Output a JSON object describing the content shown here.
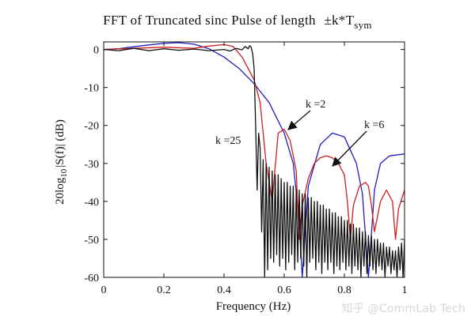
{
  "chart_data": {
    "type": "line",
    "title": "FFT of Truncated sinc Pulse of length",
    "title_suffix": "±k*T",
    "title_subscript": "sym",
    "xlabel": "Frequency (Hz)",
    "ylabel_prefix": "20log",
    "ylabel_subscript": "10",
    "ylabel_suffix": "|S(f)| (dB)",
    "xlim": [
      0,
      1
    ],
    "ylim": [
      -60,
      2
    ],
    "xticks": [
      0,
      0.2,
      0.4,
      0.6,
      0.8,
      1
    ],
    "xtick_labels": [
      "0",
      "0.2",
      "0.4",
      "0.6",
      "0.8",
      "1"
    ],
    "yticks": [
      0,
      -10,
      -20,
      -30,
      -40,
      -50,
      -60
    ],
    "ytick_labels": [
      "0",
      "-10",
      "-20",
      "-30",
      "-40",
      "-50",
      "-60"
    ],
    "grid": false,
    "series": [
      {
        "name": "k =2",
        "color": "#1f1fbf",
        "x": [
          0,
          0.05,
          0.1,
          0.15,
          0.2,
          0.25,
          0.3,
          0.35,
          0.4,
          0.45,
          0.5,
          0.55,
          0.6,
          0.63,
          0.65,
          0.66,
          0.68,
          0.72,
          0.76,
          0.8,
          0.84,
          0.86,
          0.88,
          0.9,
          0.92,
          0.95,
          1.0
        ],
        "values": [
          0,
          0.2,
          0.7,
          1.2,
          1.6,
          1.8,
          1.4,
          0.2,
          -2,
          -5,
          -9,
          -14,
          -22,
          -30,
          -45,
          -60,
          -36,
          -25,
          -22,
          -23,
          -30,
          -38,
          -60,
          -37,
          -30,
          -28,
          -27.5
        ]
      },
      {
        "name": "k =6",
        "color": "#cc1f1f",
        "x": [
          0,
          0.1,
          0.2,
          0.3,
          0.35,
          0.4,
          0.43,
          0.46,
          0.5,
          0.52,
          0.54,
          0.56,
          0.58,
          0.6,
          0.62,
          0.64,
          0.65,
          0.66,
          0.68,
          0.7,
          0.72,
          0.74,
          0.76,
          0.78,
          0.8,
          0.81,
          0.82,
          0.83,
          0.85,
          0.87,
          0.88,
          0.89,
          0.9,
          0.92,
          0.94,
          0.96,
          0.97,
          0.98,
          1.0
        ],
        "values": [
          0,
          0.3,
          0.6,
          0.3,
          0.9,
          1.3,
          0.8,
          -2,
          -8,
          -14,
          -30,
          -40,
          -22,
          -21,
          -24,
          -32,
          -50,
          -41,
          -34,
          -30,
          -28.5,
          -28,
          -28.5,
          -30,
          -33,
          -40,
          -50,
          -41,
          -36,
          -35,
          -36,
          -41,
          -48,
          -40,
          -37,
          -40,
          -50,
          -42,
          -37
        ]
      },
      {
        "name": "k =25",
        "color": "#111111",
        "x": [
          0,
          0.05,
          0.1,
          0.15,
          0.2,
          0.25,
          0.3,
          0.35,
          0.4,
          0.42,
          0.44,
          0.46,
          0.47,
          0.48,
          0.485,
          0.49,
          0.495,
          0.5,
          0.505,
          0.51,
          0.515,
          0.52,
          0.525,
          0.53,
          0.535,
          0.54,
          0.545,
          0.55,
          0.555,
          0.56,
          0.565,
          0.57,
          0.575,
          0.58,
          0.585,
          0.59,
          0.595,
          0.6,
          0.605,
          0.61,
          0.615,
          0.62,
          0.625,
          0.63,
          0.635,
          0.64,
          0.645,
          0.65,
          0.655,
          0.66,
          0.665,
          0.67,
          0.675,
          0.68,
          0.685,
          0.69,
          0.695,
          0.7,
          0.705,
          0.71,
          0.715,
          0.72,
          0.725,
          0.73,
          0.735,
          0.74,
          0.745,
          0.75,
          0.755,
          0.76,
          0.765,
          0.77,
          0.775,
          0.78,
          0.785,
          0.79,
          0.795,
          0.8,
          0.805,
          0.81,
          0.815,
          0.82,
          0.825,
          0.83,
          0.835,
          0.84,
          0.845,
          0.85,
          0.855,
          0.86,
          0.865,
          0.87,
          0.875,
          0.88,
          0.885,
          0.89,
          0.895,
          0.9,
          0.905,
          0.91,
          0.915,
          0.92,
          0.925,
          0.93,
          0.935,
          0.94,
          0.945,
          0.95,
          0.955,
          0.96,
          0.965,
          0.97,
          0.975,
          0.98,
          0.985,
          0.99,
          0.995,
          1.0
        ],
        "values": [
          0,
          -0.3,
          0.3,
          -0.3,
          0.2,
          -0.2,
          0.1,
          -0.3,
          0,
          -0.4,
          0.3,
          -0.1,
          0.8,
          0.2,
          1.0,
          0.6,
          -1,
          -5,
          -20,
          -37,
          -22,
          -26,
          -48,
          -29,
          -60,
          -30,
          -58,
          -31,
          -55,
          -32,
          -56,
          -33,
          -54,
          -33,
          -57,
          -34,
          -55,
          -35,
          -58,
          -35,
          -56,
          -36,
          -54,
          -36,
          -58,
          -37,
          -56,
          -37,
          -55,
          -38,
          -57,
          -38,
          -60,
          -39,
          -56,
          -39,
          -55,
          -40,
          -58,
          -40,
          -56,
          -41,
          -59,
          -41,
          -56,
          -42,
          -58,
          -42,
          -56,
          -43,
          -59,
          -43,
          -57,
          -44,
          -58,
          -44,
          -56,
          -45,
          -58,
          -45,
          -57,
          -46,
          -59,
          -46,
          -57,
          -47,
          -58,
          -47,
          -60,
          -48,
          -57,
          -48,
          -59,
          -49,
          -57,
          -49,
          -58,
          -50,
          -59,
          -50,
          -57,
          -51,
          -58,
          -51,
          -60,
          -52,
          -57,
          -52,
          -59,
          -53,
          -58,
          -53,
          -60,
          -52,
          -58,
          -51,
          -60,
          -50
        ]
      }
    ],
    "annotations": [
      {
        "label": "k =2",
        "target_x": 0.61,
        "target_y": -20.5
      },
      {
        "label": "k =6",
        "target_x": 0.765,
        "target_y": -30
      },
      {
        "label": "k =25"
      }
    ]
  },
  "watermark": "知乎 @CommLab Tech"
}
